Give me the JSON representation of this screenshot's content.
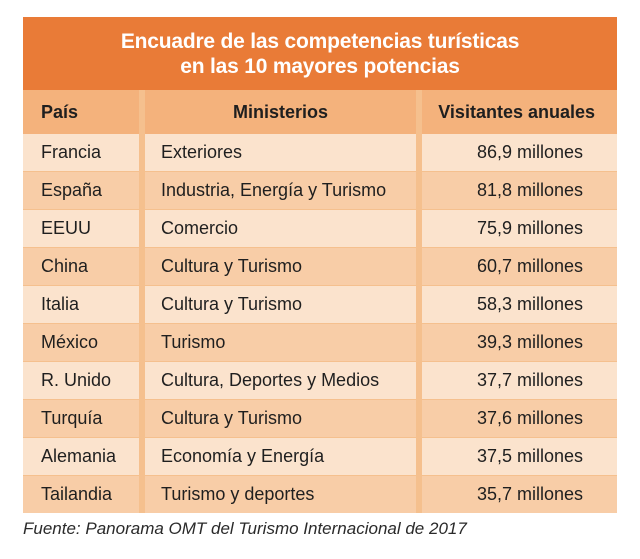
{
  "title": {
    "line1": "Encuadre de las competencias turísticas",
    "line2": "en las 10 mayores potencias"
  },
  "colors": {
    "title_bg": "#e97b37",
    "header_bg": "#f4b27c",
    "row_light": "#fbe3cd",
    "row_dark": "#f8cda7",
    "frame": "#f5c08e"
  },
  "table": {
    "headers": [
      "País",
      "Ministerios",
      "Visitantes anuales"
    ],
    "rows": [
      {
        "pais": "Francia",
        "ministerio": "Exteriores",
        "visitantes": "86,9 millones"
      },
      {
        "pais": "España",
        "ministerio": "Industria, Energía y Turismo",
        "visitantes": "81,8 millones"
      },
      {
        "pais": "EEUU",
        "ministerio": "Comercio",
        "visitantes": "75,9 millones"
      },
      {
        "pais": "China",
        "ministerio": "Cultura y Turismo",
        "visitantes": "60,7 millones"
      },
      {
        "pais": "Italia",
        "ministerio": "Cultura y Turismo",
        "visitantes": "58,3 millones"
      },
      {
        "pais": "México",
        "ministerio": "Turismo",
        "visitantes": "39,3 millones"
      },
      {
        "pais": "R. Unido",
        "ministerio": "Cultura, Deportes y Medios",
        "visitantes": "37,7 millones"
      },
      {
        "pais": "Turquía",
        "ministerio": "Cultura y Turismo",
        "visitantes": "37,6 millones"
      },
      {
        "pais": "Alemania",
        "ministerio": "Economía y Energía",
        "visitantes": "37,5 millones"
      },
      {
        "pais": "Tailandia",
        "ministerio": "Turismo y deportes",
        "visitantes": "35,7 millones"
      }
    ]
  },
  "source": "Fuente: Panorama OMT del Turismo Internacional de 2017"
}
